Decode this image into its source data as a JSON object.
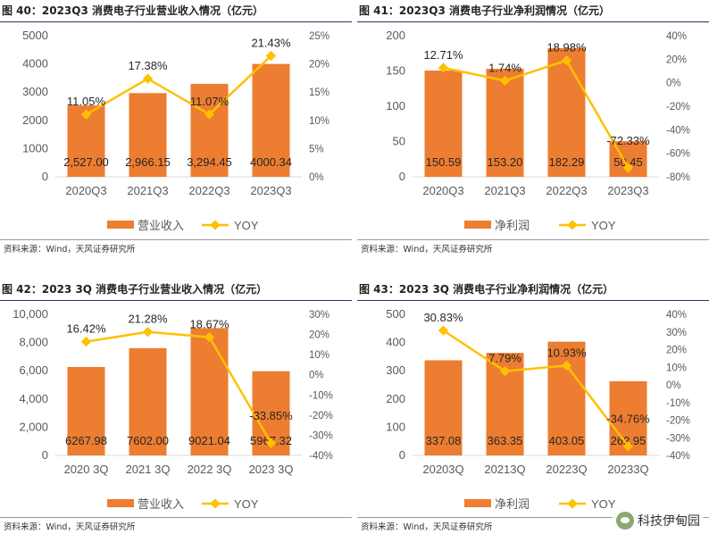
{
  "colors": {
    "bar": "#ed7d31",
    "line": "#ffc000",
    "axis": "#d9d9d9",
    "text": "#595959"
  },
  "watermark": {
    "text": "科技伊甸园"
  },
  "chart_data": [
    {
      "id": "fig40",
      "title": "图 40：2023Q3 消费电子行业营业收入情况（亿元）",
      "source": "资料来源：Wind，天风证券研究所",
      "type": "bar",
      "categories": [
        "2020Q3",
        "2021Q3",
        "2022Q3",
        "2023Q3"
      ],
      "series": [
        {
          "name": "营业收入",
          "type": "bar",
          "axis": "left",
          "values": [
            2527.0,
            2966.15,
            3294.45,
            4000.34
          ],
          "labels": [
            "2,527.00",
            "2,966.15",
            "3,294.45",
            "4000.34"
          ]
        },
        {
          "name": "YOY",
          "type": "line",
          "axis": "right",
          "values": [
            11.05,
            17.38,
            11.07,
            21.43
          ],
          "labels": [
            "11.05%",
            "17.38%",
            "11.07%",
            "21.43%"
          ]
        }
      ],
      "ylim": [
        0,
        5000
      ],
      "yticks": [
        0,
        1000,
        2000,
        3000,
        4000,
        5000
      ],
      "ytick_labels": [
        "0",
        "1000",
        "2000",
        "3000",
        "4000",
        "5000"
      ],
      "y2lim": [
        0,
        25
      ],
      "y2ticks": [
        0,
        5,
        10,
        15,
        20,
        25
      ],
      "y2tick_labels": [
        "0%",
        "5%",
        "10%",
        "15%",
        "20%",
        "25%"
      ],
      "legend": [
        "营业收入",
        "YOY"
      ]
    },
    {
      "id": "fig41",
      "title": "图 41：2023Q3 消费电子行业净利润情况（亿元）",
      "source": "资料来源：Wind，天风证券研究所",
      "type": "bar",
      "categories": [
        "2020Q3",
        "2021Q3",
        "2022Q3",
        "2023Q3"
      ],
      "series": [
        {
          "name": "净利润",
          "type": "bar",
          "axis": "left",
          "values": [
            150.59,
            153.2,
            182.29,
            50.45
          ],
          "labels": [
            "150.59",
            "153.20",
            "182.29",
            "50.45"
          ]
        },
        {
          "name": "YOY",
          "type": "line",
          "axis": "right",
          "values": [
            12.71,
            1.74,
            18.98,
            -72.33
          ],
          "labels": [
            "12.71%",
            "1.74%",
            "18.98%",
            "-72.33%"
          ]
        }
      ],
      "ylim": [
        0,
        200
      ],
      "yticks": [
        0,
        50,
        100,
        150,
        200
      ],
      "ytick_labels": [
        "0",
        "50",
        "100",
        "150",
        "200"
      ],
      "y2lim": [
        -80,
        40
      ],
      "y2ticks": [
        -80,
        -60,
        -40,
        -20,
        0,
        20,
        40
      ],
      "y2tick_labels": [
        "-80%",
        "-60%",
        "-40%",
        "-20%",
        "0%",
        "20%",
        "40%"
      ],
      "legend": [
        "净利润",
        "YOY"
      ]
    },
    {
      "id": "fig42",
      "title": "图 42：2023 3Q 消费电子行业营业收入情况（亿元）",
      "source": "资料来源：Wind，天风证券研究所",
      "type": "bar",
      "categories": [
        "2020 3Q",
        "2021 3Q",
        "2022 3Q",
        "2023 3Q"
      ],
      "series": [
        {
          "name": "营业收入",
          "type": "bar",
          "axis": "left",
          "values": [
            6267.98,
            7602.0,
            9021.04,
            5967.32
          ],
          "labels": [
            "6267.98",
            "7602.00",
            "9021.04",
            "5967.32"
          ]
        },
        {
          "name": "YOY",
          "type": "line",
          "axis": "right",
          "values": [
            16.42,
            21.28,
            18.67,
            -33.85
          ],
          "labels": [
            "16.42%",
            "21.28%",
            "18.67%",
            "-33.85%"
          ]
        }
      ],
      "ylim": [
        0,
        10000
      ],
      "yticks": [
        0,
        2000,
        4000,
        6000,
        8000,
        10000
      ],
      "ytick_labels": [
        "0",
        "2,000",
        "4,000",
        "6,000",
        "8,000",
        "10,000"
      ],
      "y2lim": [
        -40,
        30
      ],
      "y2ticks": [
        -40,
        -30,
        -20,
        -10,
        0,
        10,
        20,
        30
      ],
      "y2tick_labels": [
        "-40%",
        "-30%",
        "-20%",
        "-10%",
        "0%",
        "10%",
        "20%",
        "30%"
      ],
      "legend": [
        "营业收入",
        "YOY"
      ]
    },
    {
      "id": "fig43",
      "title": "图 43：2023 3Q 消费电子行业净利润情况（亿元）",
      "source": "资料来源：Wind，天风证券研究所",
      "type": "bar",
      "categories": [
        "20203Q",
        "20213Q",
        "20223Q",
        "20233Q"
      ],
      "series": [
        {
          "name": "净利润",
          "type": "bar",
          "axis": "left",
          "values": [
            337.08,
            363.35,
            403.05,
            262.95
          ],
          "labels": [
            "337.08",
            "363.35",
            "403.05",
            "262.95"
          ]
        },
        {
          "name": "YOY",
          "type": "line",
          "axis": "right",
          "values": [
            30.83,
            7.79,
            10.93,
            -34.76
          ],
          "labels": [
            "30.83%",
            "7.79%",
            "10.93%",
            "-34.76%"
          ]
        }
      ],
      "ylim": [
        0,
        500
      ],
      "yticks": [
        0,
        100,
        200,
        300,
        400,
        500
      ],
      "ytick_labels": [
        "0",
        "100",
        "200",
        "300",
        "400",
        "500"
      ],
      "y2lim": [
        -40,
        40
      ],
      "y2ticks": [
        -40,
        -30,
        -20,
        -10,
        0,
        10,
        20,
        30,
        40
      ],
      "y2tick_labels": [
        "-40%",
        "-30%",
        "-20%",
        "-10%",
        "0%",
        "10%",
        "20%",
        "30%",
        "40%"
      ],
      "legend": [
        "净利润",
        "YOY"
      ]
    }
  ]
}
